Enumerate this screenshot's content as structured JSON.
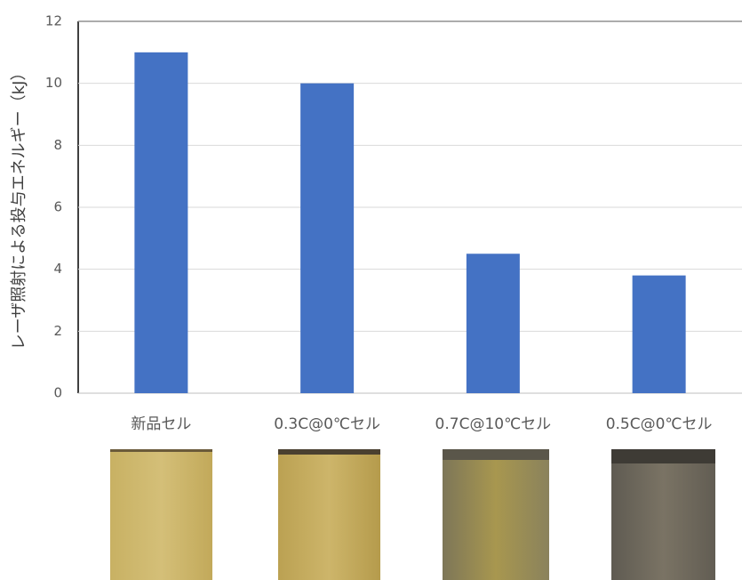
{
  "chart_data": {
    "type": "bar",
    "y_label": "レーザ照射による投与エネルギー（kJ）",
    "categories": [
      "新品セル",
      "0.3C@0℃セル",
      "0.7C@10℃セル",
      "0.5C@0℃セル"
    ],
    "values": [
      11,
      10,
      4.5,
      3.8
    ],
    "color": "#4472c4",
    "ylim": [
      0,
      12
    ],
    "yticks": [
      0,
      2,
      4,
      6,
      8,
      10,
      12
    ],
    "grid": true
  }
}
